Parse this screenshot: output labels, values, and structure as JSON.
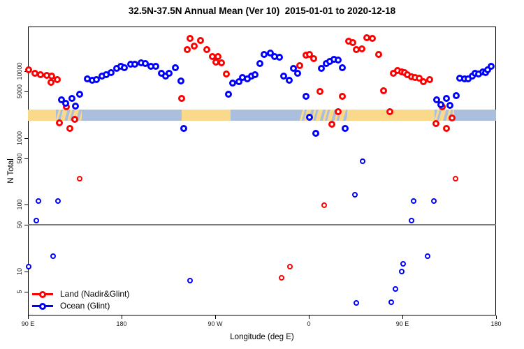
{
  "title": "32.5N-37.5N Annual Mean (Ver 10)  2015-01-01 to 2020-12-18",
  "legend": {
    "items": [
      {
        "label": "Land (Nadir&Glint)",
        "color": "#ff0000"
      },
      {
        "label": "Ocean (Glint)",
        "color": "#0000ff"
      }
    ]
  },
  "chart_data": {
    "type": "scatter",
    "title": "32.5N-37.5N Annual Mean (Ver 10)  2015-01-01 to 2020-12-18",
    "xlabel": "Longitude (deg E)",
    "ylabel": "N Total",
    "x_axis": {
      "range_deg_east_continuous": [
        90,
        540
      ],
      "ticks": [
        {
          "lon": 90,
          "label": "90 E"
        },
        {
          "lon": 180,
          "label": "180"
        },
        {
          "lon": 270,
          "label": "90 W"
        },
        {
          "lon": 360,
          "label": "0"
        },
        {
          "lon": 450,
          "label": "90 E"
        },
        {
          "lon": 540,
          "label": "180"
        }
      ]
    },
    "y_axis": {
      "scale": "log",
      "ticks": [
        {
          "value": 10000,
          "label": "10000"
        },
        {
          "value": 5000,
          "label": "5000"
        },
        {
          "value": 1000,
          "label": "1000"
        },
        {
          "value": 500,
          "label": "500"
        },
        {
          "value": 100,
          "label": "100"
        },
        {
          "value": 50,
          "label": "50"
        },
        {
          "value": 10,
          "label": "10"
        },
        {
          "value": 5,
          "label": "5"
        }
      ],
      "approx_limits": [
        2.2,
        46000
      ]
    },
    "reference_line_value": 50,
    "map_band": {
      "description": "land/ocean strip for 32.5N-37.5N latitude belt",
      "land_color": "#fbd98b",
      "ocean_color": "#a9bfdd",
      "center_value": 2200,
      "segments": [
        {
          "from": 90,
          "to": 117,
          "type": "land"
        },
        {
          "from": 117,
          "to": 142,
          "type": "mixed"
        },
        {
          "from": 142,
          "to": 238,
          "type": "ocean"
        },
        {
          "from": 238,
          "to": 285,
          "type": "land"
        },
        {
          "from": 285,
          "to": 351,
          "type": "ocean"
        },
        {
          "from": 351,
          "to": 397,
          "type": "mixed"
        },
        {
          "from": 397,
          "to": 481,
          "type": "land"
        },
        {
          "from": 481,
          "to": 500,
          "type": "mixed"
        },
        {
          "from": 500,
          "to": 540,
          "type": "ocean"
        }
      ]
    },
    "series": [
      {
        "name": "Land (Nadir&Glint)",
        "color": "#ff0000",
        "points": [
          [
            91,
            10500
          ],
          [
            97,
            9300
          ],
          [
            102,
            8900
          ],
          [
            108,
            8700
          ],
          [
            113,
            8500
          ],
          [
            118,
            7500
          ],
          [
            112,
            6800
          ],
          [
            127,
            2900
          ],
          [
            120,
            1700
          ],
          [
            135,
            1900
          ],
          [
            130,
            1400
          ],
          [
            140,
            245
          ],
          [
            238,
            3900
          ],
          [
            243,
            21000
          ],
          [
            246,
            31000
          ],
          [
            250,
            24000
          ],
          [
            256,
            29000
          ],
          [
            262,
            21000
          ],
          [
            267,
            16500
          ],
          [
            271,
            13700
          ],
          [
            273,
            16500
          ],
          [
            276,
            13400
          ],
          [
            281,
            9100
          ],
          [
            334,
            8
          ],
          [
            342,
            12
          ],
          [
            351,
            12200
          ],
          [
            357,
            17400
          ],
          [
            361,
            17800
          ],
          [
            365,
            15500
          ],
          [
            371,
            5000
          ],
          [
            375,
            98
          ],
          [
            382,
            1600
          ],
          [
            388,
            2500
          ],
          [
            392,
            4200
          ],
          [
            398,
            28000
          ],
          [
            402,
            26500
          ],
          [
            406,
            21000
          ],
          [
            411,
            21500
          ],
          [
            416,
            31500
          ],
          [
            421,
            31000
          ],
          [
            427,
            17800
          ],
          [
            432,
            5100
          ],
          [
            438,
            2500
          ],
          [
            441,
            9300
          ],
          [
            445,
            10200
          ],
          [
            449,
            9800
          ],
          [
            452,
            9500
          ],
          [
            455,
            8800
          ],
          [
            459,
            8300
          ],
          [
            462,
            8100
          ],
          [
            466,
            7900
          ],
          [
            470,
            6900
          ],
          [
            476,
            7500
          ],
          [
            482,
            1650
          ],
          [
            488,
            2900
          ],
          [
            492,
            1400
          ],
          [
            498,
            2000
          ],
          [
            501,
            245
          ]
        ]
      },
      {
        "name": "Ocean (Glint)",
        "color": "#0000ff",
        "points": [
          [
            122,
            3700
          ],
          [
            126,
            3300
          ],
          [
            132,
            3900
          ],
          [
            136,
            3000
          ],
          [
            140,
            4500
          ],
          [
            147,
            7700
          ],
          [
            152,
            7300
          ],
          [
            156,
            7500
          ],
          [
            161,
            8500
          ],
          [
            165,
            8900
          ],
          [
            170,
            9500
          ],
          [
            175,
            10900
          ],
          [
            179,
            11700
          ],
          [
            183,
            11400
          ],
          [
            189,
            12700
          ],
          [
            193,
            12700
          ],
          [
            199,
            13400
          ],
          [
            203,
            13000
          ],
          [
            208,
            11700
          ],
          [
            213,
            11700
          ],
          [
            218,
            9300
          ],
          [
            222,
            8500
          ],
          [
            226,
            9300
          ],
          [
            232,
            11400
          ],
          [
            237,
            7100
          ],
          [
            240,
            1400
          ],
          [
            283,
            4500
          ],
          [
            287,
            6600
          ],
          [
            293,
            6900
          ],
          [
            296,
            8100
          ],
          [
            301,
            7700
          ],
          [
            305,
            8500
          ],
          [
            308,
            8900
          ],
          [
            313,
            13000
          ],
          [
            317,
            17800
          ],
          [
            323,
            18700
          ],
          [
            327,
            16600
          ],
          [
            332,
            16200
          ],
          [
            336,
            8500
          ],
          [
            341,
            7300
          ],
          [
            345,
            11000
          ],
          [
            349,
            9300
          ],
          [
            357,
            4200
          ],
          [
            361,
            2050
          ],
          [
            367,
            1170
          ],
          [
            372,
            11000
          ],
          [
            377,
            13000
          ],
          [
            380,
            14000
          ],
          [
            384,
            15000
          ],
          [
            388,
            14700
          ],
          [
            392,
            11200
          ],
          [
            395,
            1400
          ],
          [
            404,
            140
          ],
          [
            412,
            450
          ],
          [
            483,
            3700
          ],
          [
            487,
            3150
          ],
          [
            492,
            3900
          ],
          [
            496,
            3100
          ],
          [
            502,
            4300
          ],
          [
            505,
            7900
          ],
          [
            510,
            7700
          ],
          [
            513,
            7700
          ],
          [
            517,
            8500
          ],
          [
            520,
            9300
          ],
          [
            523,
            9100
          ],
          [
            527,
            9800
          ],
          [
            530,
            9500
          ],
          [
            532,
            10500
          ],
          [
            535,
            11900
          ],
          [
            91,
            12
          ],
          [
            98,
            58
          ],
          [
            100,
            115
          ],
          [
            114,
            17
          ],
          [
            119,
            115
          ],
          [
            246,
            7.4
          ],
          [
            406,
            3.4
          ],
          [
            439,
            3.5
          ],
          [
            443,
            5.5
          ],
          [
            449,
            10
          ],
          [
            451,
            13
          ],
          [
            459,
            58
          ],
          [
            461,
            115
          ],
          [
            474,
            17
          ],
          [
            480,
            115
          ]
        ]
      }
    ]
  }
}
